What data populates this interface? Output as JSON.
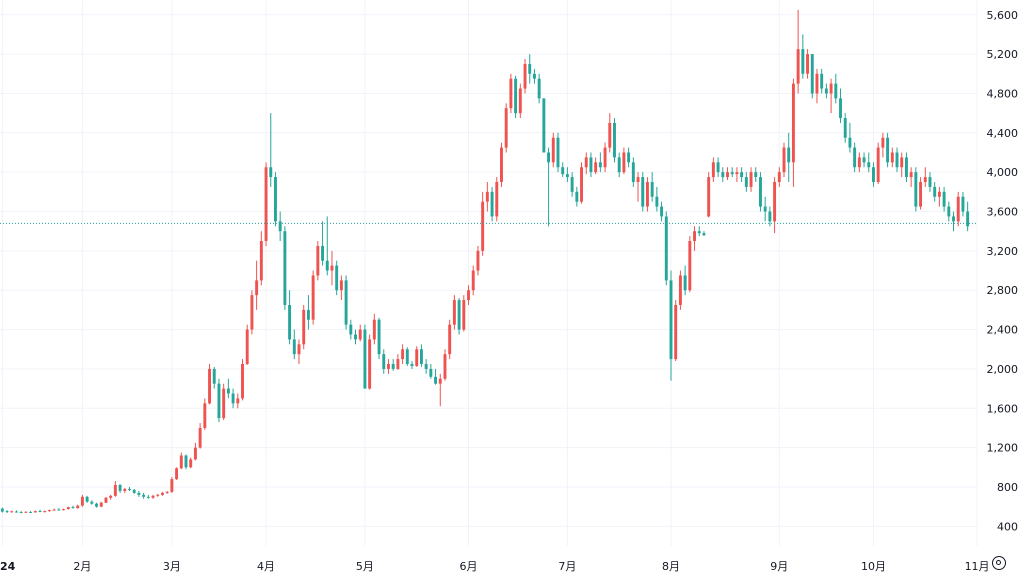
{
  "chart_data": {
    "type": "candlestick",
    "title": "",
    "xlabel": "",
    "ylabel": "",
    "ylim": [
      200,
      5750
    ],
    "y_ticks": [
      400,
      800,
      1200,
      1600,
      2000,
      2400,
      2800,
      3200,
      3600,
      4000,
      4400,
      4800,
      5200,
      5600
    ],
    "y_tick_labels": [
      "400",
      "800",
      "1,200",
      "1,600",
      "2,000",
      "2,400",
      "2,800",
      "3,200",
      "3,600",
      "4,000",
      "4,400",
      "4,800",
      "5,200",
      "5,600"
    ],
    "x_tick_labels": [
      "24",
      "2月",
      "3月",
      "4月",
      "5月",
      "6月",
      "7月",
      "8月",
      "9月",
      "10月",
      "11月"
    ],
    "x_tick_index": [
      0,
      17,
      36,
      56,
      77,
      99,
      120,
      142,
      165,
      185,
      207
    ],
    "current_price": 3480,
    "grid": true,
    "colors": {
      "up": "#ef5350",
      "down": "#26a69a",
      "price_line": "#26a69a",
      "grid": "#f0f3fa"
    },
    "settings_icon": "gear-icon",
    "candles": [
      [
        580,
        590,
        540,
        550
      ],
      [
        555,
        565,
        535,
        545
      ],
      [
        548,
        560,
        540,
        552
      ],
      [
        550,
        562,
        540,
        545
      ],
      [
        545,
        555,
        535,
        540
      ],
      [
        540,
        552,
        535,
        548
      ],
      [
        546,
        555,
        538,
        542
      ],
      [
        542,
        560,
        538,
        555
      ],
      [
        555,
        570,
        545,
        548
      ],
      [
        548,
        560,
        540,
        555
      ],
      [
        555,
        570,
        548,
        565
      ],
      [
        565,
        580,
        560,
        570
      ],
      [
        570,
        585,
        562,
        568
      ],
      [
        568,
        580,
        560,
        575
      ],
      [
        575,
        600,
        570,
        595
      ],
      [
        595,
        610,
        580,
        585
      ],
      [
        585,
        620,
        580,
        610
      ],
      [
        610,
        720,
        600,
        700
      ],
      [
        700,
        710,
        640,
        650
      ],
      [
        650,
        665,
        620,
        630
      ],
      [
        630,
        640,
        590,
        600
      ],
      [
        600,
        650,
        595,
        640
      ],
      [
        640,
        700,
        635,
        690
      ],
      [
        690,
        720,
        670,
        710
      ],
      [
        710,
        860,
        700,
        820
      ],
      [
        820,
        830,
        740,
        760
      ],
      [
        760,
        790,
        740,
        780
      ],
      [
        780,
        800,
        760,
        770
      ],
      [
        770,
        780,
        730,
        740
      ],
      [
        740,
        760,
        700,
        720
      ],
      [
        720,
        740,
        680,
        700
      ],
      [
        700,
        720,
        680,
        690
      ],
      [
        690,
        720,
        680,
        710
      ],
      [
        710,
        730,
        700,
        720
      ],
      [
        720,
        750,
        710,
        740
      ],
      [
        740,
        760,
        730,
        750
      ],
      [
        750,
        900,
        740,
        880
      ],
      [
        880,
        1000,
        870,
        990
      ],
      [
        990,
        1150,
        980,
        1120
      ],
      [
        1120,
        1130,
        980,
        1000
      ],
      [
        1000,
        1100,
        990,
        1080
      ],
      [
        1080,
        1250,
        1070,
        1200
      ],
      [
        1200,
        1450,
        1190,
        1400
      ],
      [
        1400,
        1700,
        1380,
        1650
      ],
      [
        1650,
        2050,
        1640,
        2000
      ],
      [
        2000,
        2020,
        1800,
        1850
      ],
      [
        1850,
        1900,
        1460,
        1500
      ],
      [
        1500,
        1850,
        1480,
        1800
      ],
      [
        1800,
        1900,
        1700,
        1750
      ],
      [
        1750,
        1800,
        1600,
        1650
      ],
      [
        1650,
        1750,
        1600,
        1700
      ],
      [
        1700,
        2100,
        1680,
        2050
      ],
      [
        2050,
        2450,
        2040,
        2400
      ],
      [
        2400,
        2800,
        2350,
        2750
      ],
      [
        2750,
        3100,
        2600,
        2900
      ],
      [
        2900,
        3400,
        2850,
        3300
      ],
      [
        3300,
        4100,
        3250,
        4050
      ],
      [
        4050,
        4600,
        3850,
        3950
      ],
      [
        3950,
        4000,
        3450,
        3500
      ],
      [
        3500,
        3600,
        3300,
        3400
      ],
      [
        3400,
        3450,
        2600,
        2650
      ],
      [
        2650,
        2800,
        2250,
        2300
      ],
      [
        2300,
        2400,
        2100,
        2150
      ],
      [
        2150,
        2300,
        2050,
        2250
      ],
      [
        2250,
        2650,
        2200,
        2600
      ],
      [
        2600,
        2750,
        2400,
        2500
      ],
      [
        2500,
        3000,
        2450,
        2950
      ],
      [
        2950,
        3300,
        2900,
        3250
      ],
      [
        3250,
        3500,
        3050,
        3100
      ],
      [
        3100,
        3550,
        2950,
        3000
      ],
      [
        3000,
        3200,
        2850,
        3050
      ],
      [
        3050,
        3100,
        2750,
        2800
      ],
      [
        2800,
        2950,
        2700,
        2900
      ],
      [
        2900,
        2950,
        2400,
        2450
      ],
      [
        2450,
        2500,
        2300,
        2350
      ],
      [
        2350,
        2400,
        2250,
        2300
      ],
      [
        2300,
        2450,
        2280,
        2400
      ],
      [
        2400,
        2450,
        1800,
        1800
      ],
      [
        1800,
        2350,
        1790,
        2300
      ],
      [
        2300,
        2560,
        2250,
        2500
      ],
      [
        2500,
        2520,
        2100,
        2150
      ],
      [
        2150,
        2200,
        1950,
        2000
      ],
      [
        2000,
        2100,
        1950,
        2050
      ],
      [
        2050,
        2100,
        1980,
        2000
      ],
      [
        2000,
        2150,
        1990,
        2100
      ],
      [
        2100,
        2250,
        2050,
        2200
      ],
      [
        2200,
        2220,
        2030,
        2050
      ],
      [
        2050,
        2080,
        2000,
        2030
      ],
      [
        2030,
        2230,
        2020,
        2200
      ],
      [
        2200,
        2250,
        2020,
        2050
      ],
      [
        2050,
        2100,
        1950,
        2000
      ],
      [
        2000,
        2050,
        1900,
        1920
      ],
      [
        1920,
        2000,
        1840,
        1850
      ],
      [
        1850,
        1950,
        1620,
        1900
      ],
      [
        1900,
        2200,
        1880,
        2150
      ],
      [
        2150,
        2500,
        2100,
        2450
      ],
      [
        2450,
        2750,
        2400,
        2700
      ],
      [
        2700,
        2720,
        2350,
        2400
      ],
      [
        2400,
        2750,
        2380,
        2700
      ],
      [
        2700,
        2850,
        2650,
        2800
      ],
      [
        2800,
        3050,
        2750,
        3000
      ],
      [
        3000,
        3250,
        2950,
        3200
      ],
      [
        3200,
        3800,
        3150,
        3700
      ],
      [
        3700,
        3900,
        3600,
        3800
      ],
      [
        3800,
        3850,
        3500,
        3550
      ],
      [
        3550,
        3950,
        3500,
        3900
      ],
      [
        3900,
        4300,
        3850,
        4250
      ],
      [
        4250,
        4700,
        4200,
        4650
      ],
      [
        4650,
        5000,
        4600,
        4950
      ],
      [
        4950,
        4980,
        4550,
        4600
      ],
      [
        4600,
        4900,
        4550,
        4850
      ],
      [
        4850,
        5150,
        4800,
        5100
      ],
      [
        5100,
        5200,
        4900,
        5000
      ],
      [
        5000,
        5050,
        4900,
        4950
      ],
      [
        4950,
        5000,
        4700,
        4750
      ],
      [
        4750,
        4750,
        4200,
        4200
      ],
      [
        4200,
        4250,
        3450,
        4100
      ],
      [
        4100,
        4400,
        4050,
        4350
      ],
      [
        4350,
        4400,
        4000,
        4050
      ],
      [
        4050,
        4100,
        3950,
        3980
      ],
      [
        3980,
        4050,
        3900,
        3950
      ],
      [
        3950,
        4000,
        3750,
        3800
      ],
      [
        3800,
        3850,
        3650,
        3700
      ],
      [
        3700,
        4100,
        3680,
        4050
      ],
      [
        4050,
        4200,
        3980,
        4150
      ],
      [
        4150,
        4200,
        3950,
        4000
      ],
      [
        4000,
        4150,
        3980,
        4100
      ],
      [
        4100,
        4200,
        4000,
        4050
      ],
      [
        4050,
        4300,
        4000,
        4250
      ],
      [
        4250,
        4600,
        4200,
        4500
      ],
      [
        4500,
        4550,
        4100,
        4150
      ],
      [
        4150,
        4200,
        3950,
        4000
      ],
      [
        4000,
        4250,
        3980,
        4200
      ],
      [
        4200,
        4250,
        4050,
        4100
      ],
      [
        4100,
        4150,
        3850,
        3900
      ],
      [
        3900,
        4000,
        3700,
        3950
      ],
      [
        3950,
        4000,
        3600,
        3650
      ],
      [
        3650,
        3950,
        3600,
        3900
      ],
      [
        3900,
        4000,
        3700,
        3750
      ],
      [
        3750,
        3850,
        3600,
        3650
      ],
      [
        3650,
        3700,
        3500,
        3550
      ],
      [
        3550,
        3600,
        2850,
        2900
      ],
      [
        2900,
        3000,
        1880,
        2100
      ],
      [
        2100,
        2700,
        2080,
        2650
      ],
      [
        2650,
        3000,
        2600,
        2950
      ],
      [
        2950,
        3050,
        2750,
        2800
      ],
      [
        2800,
        3350,
        2780,
        3300
      ],
      [
        3300,
        3450,
        3200,
        3400
      ],
      [
        3400,
        3450,
        3350,
        3380
      ],
      [
        3380,
        3400,
        3350,
        3360
      ],
      [
        3550,
        4000,
        3540,
        3950
      ],
      [
        3950,
        4150,
        3900,
        4100
      ],
      [
        4100,
        4150,
        3950,
        4000
      ],
      [
        4000,
        4050,
        3900,
        3950
      ],
      [
        3950,
        4050,
        3920,
        4000
      ],
      [
        4000,
        4050,
        3950,
        3980
      ],
      [
        3980,
        4050,
        3900,
        4000
      ],
      [
        4000,
        4050,
        3900,
        3950
      ],
      [
        3950,
        4000,
        3800,
        3850
      ],
      [
        3850,
        4050,
        3800,
        4000
      ],
      [
        4000,
        4050,
        3900,
        3950
      ],
      [
        3950,
        4000,
        3600,
        3650
      ],
      [
        3650,
        3750,
        3500,
        3600
      ],
      [
        3600,
        3650,
        3450,
        3500
      ],
      [
        3500,
        3950,
        3380,
        3900
      ],
      [
        3900,
        4050,
        3850,
        4000
      ],
      [
        4000,
        4300,
        3950,
        4250
      ],
      [
        4250,
        4400,
        3900,
        4100
      ],
      [
        4100,
        4950,
        3850,
        4900
      ],
      [
        4900,
        5650,
        4800,
        5250
      ],
      [
        5250,
        5400,
        4950,
        5000
      ],
      [
        5000,
        5250,
        4950,
        5200
      ],
      [
        5200,
        5200,
        4750,
        4800
      ],
      [
        4800,
        5050,
        4700,
        5000
      ],
      [
        5000,
        5050,
        4800,
        4850
      ],
      [
        4850,
        4900,
        4750,
        4800
      ],
      [
        4800,
        4950,
        4600,
        4900
      ],
      [
        4900,
        5000,
        4700,
        4750
      ],
      [
        4750,
        4850,
        4500,
        4550
      ],
      [
        4550,
        4600,
        4300,
        4350
      ],
      [
        4350,
        4500,
        4200,
        4250
      ],
      [
        4250,
        4300,
        4000,
        4050
      ],
      [
        4050,
        4200,
        4000,
        4150
      ],
      [
        4150,
        4200,
        4050,
        4100
      ],
      [
        4100,
        4200,
        4000,
        4050
      ],
      [
        4050,
        4100,
        3850,
        3900
      ],
      [
        3900,
        4300,
        3880,
        4250
      ],
      [
        4250,
        4400,
        4150,
        4350
      ],
      [
        4350,
        4400,
        4050,
        4100
      ],
      [
        4100,
        4250,
        4050,
        4200
      ],
      [
        4200,
        4250,
        4000,
        4050
      ],
      [
        4050,
        4200,
        3950,
        4150
      ],
      [
        4150,
        4200,
        3900,
        3950
      ],
      [
        3950,
        4050,
        3850,
        4000
      ],
      [
        4000,
        4050,
        3600,
        3650
      ],
      [
        3650,
        3950,
        3620,
        3900
      ],
      [
        3900,
        4050,
        3850,
        3950
      ],
      [
        3950,
        4000,
        3800,
        3850
      ],
      [
        3850,
        3900,
        3700,
        3750
      ],
      [
        3750,
        3850,
        3650,
        3800
      ],
      [
        3800,
        3850,
        3600,
        3650
      ],
      [
        3650,
        3700,
        3500,
        3550
      ],
      [
        3550,
        3600,
        3400,
        3500
      ],
      [
        3500,
        3800,
        3450,
        3750
      ],
      [
        3750,
        3800,
        3550,
        3600
      ],
      [
        3600,
        3700,
        3400,
        3450
      ]
    ]
  }
}
